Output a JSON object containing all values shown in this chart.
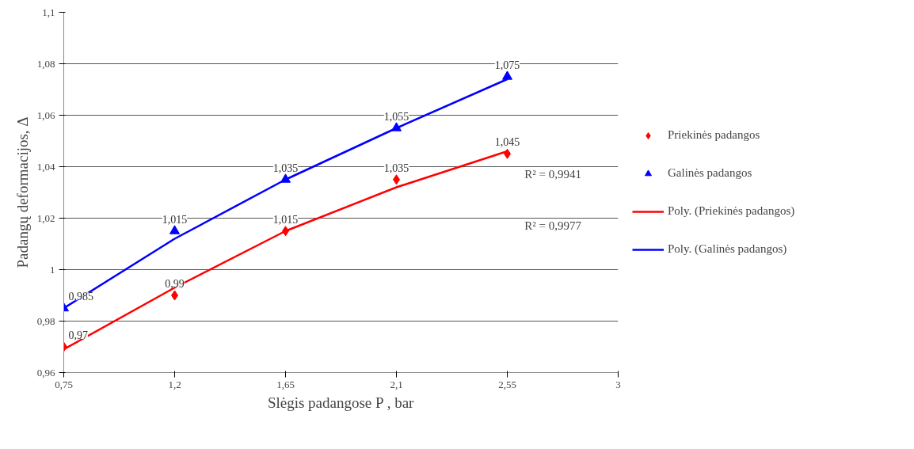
{
  "chart_data": {
    "type": "scatter",
    "xlabel": "Slėgis padangose P , bar",
    "ylabel": "Padangų deformacijos, Δ",
    "xlim": [
      0.75,
      3
    ],
    "xticks": [
      {
        "value": 0.75,
        "label": "0,75"
      },
      {
        "value": 1.2,
        "label": "1,2"
      },
      {
        "value": 1.65,
        "label": "1,65"
      },
      {
        "value": 2.1,
        "label": "2,1"
      },
      {
        "value": 2.55,
        "label": "2,55"
      },
      {
        "value": 3,
        "label": "3"
      }
    ],
    "ylim": [
      0.96,
      1.1
    ],
    "yticks": [
      {
        "value": 0.96,
        "label": "0,96"
      },
      {
        "value": 0.98,
        "label": "0,98"
      },
      {
        "value": 1,
        "label": "1"
      },
      {
        "value": 1.02,
        "label": "1,02"
      },
      {
        "value": 1.04,
        "label": "1,04"
      },
      {
        "value": 1.06,
        "label": "1,06"
      },
      {
        "value": 1.08,
        "label": "1,08"
      },
      {
        "value": 1.1,
        "label": "1,1"
      }
    ],
    "grid": "y",
    "legend": "right",
    "x": [
      0.75,
      1.2,
      1.65,
      2.1,
      2.55
    ],
    "series": [
      {
        "name": "Priekinės padangos",
        "type": "scatter",
        "marker": "diamond",
        "color": "#ff0000",
        "values": [
          0.97,
          0.99,
          1.015,
          1.035,
          1.045
        ],
        "value_labels": [
          "0,97",
          "0,99",
          "1,015",
          "1,035",
          "1,045"
        ]
      },
      {
        "name": "Galinės padangos",
        "type": "scatter",
        "marker": "triangle",
        "color": "#0000ff",
        "values": [
          0.985,
          1.015,
          1.035,
          1.055,
          1.075
        ],
        "value_labels": [
          "0,985",
          "1,015",
          "1,035",
          "1,055",
          "1,075"
        ]
      },
      {
        "name": "Poly. (Priekinės padangos)",
        "type": "line",
        "line_style": "solid",
        "color": "#ff0000",
        "values": [
          0.969,
          0.993,
          1.015,
          1.032,
          1.046
        ]
      },
      {
        "name": "Poly. (Galinės padangos)",
        "type": "line",
        "line_style": "solid",
        "color": "#0000ff",
        "values": [
          0.985,
          1.012,
          1.035,
          1.055,
          1.074
        ]
      }
    ],
    "annotations": [
      "R² = 0,9941",
      "R² = 0,9977"
    ]
  }
}
